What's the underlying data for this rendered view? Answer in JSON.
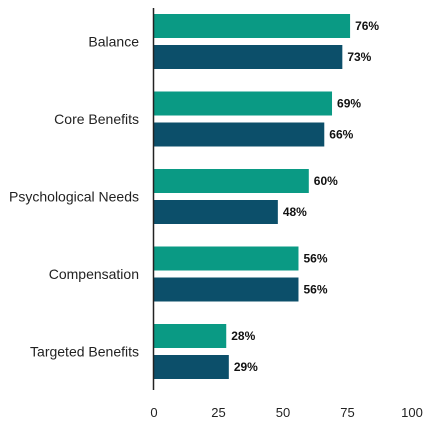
{
  "chart_data": {
    "type": "bar",
    "orientation": "horizontal",
    "categories": [
      "Balance",
      "Core Benefits",
      "Psychological Needs",
      "Compensation",
      "Targeted Benefits"
    ],
    "series": [
      {
        "values": [
          76,
          69,
          60,
          56,
          28
        ],
        "color": "#0a9a84"
      },
      {
        "values": [
          73,
          66,
          48,
          56,
          29
        ],
        "color": "#0c4f6a"
      }
    ],
    "value_labels": [
      [
        "76%",
        "69%",
        "60%",
        "56%",
        "28%"
      ],
      [
        "73%",
        "66%",
        "48%",
        "56%",
        "29%"
      ]
    ],
    "xticks": [
      0,
      25,
      50,
      75,
      100
    ],
    "xlim": [
      0,
      100
    ],
    "grid": false,
    "legend": "none"
  }
}
